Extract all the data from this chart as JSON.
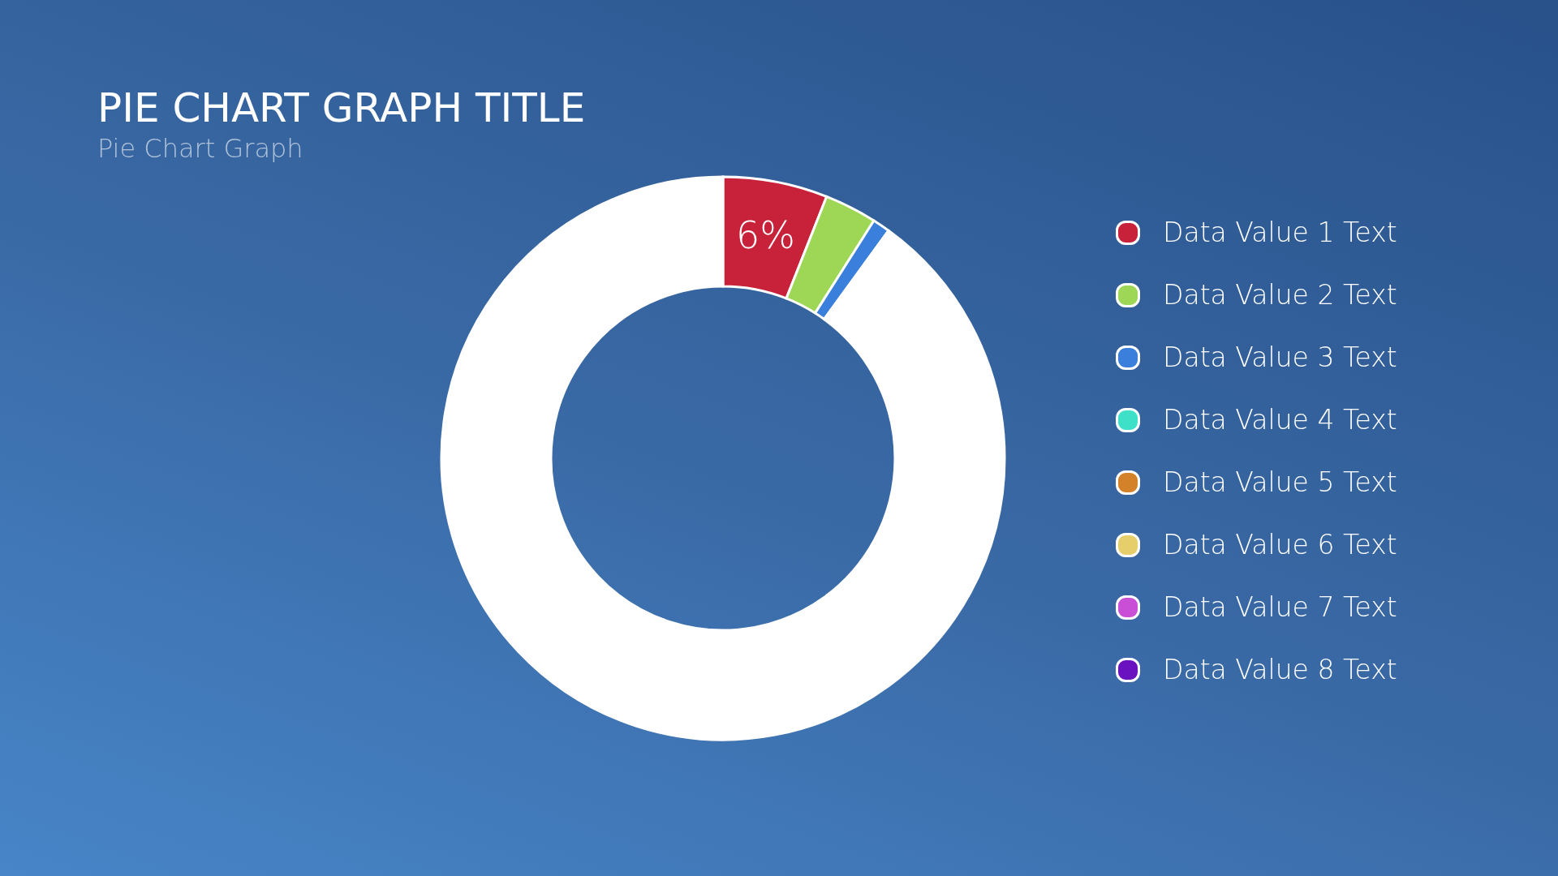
{
  "chart_data": {
    "type": "donut",
    "title": "PIE CHART GRAPH TITLE",
    "subtitle": "Pie Chart Graph",
    "categories": [
      "Data Value 1 Text",
      "Data Value 2 Text",
      "Data Value 3 Text",
      "Data Value 4 Text",
      "Data Value 5 Text",
      "Data Value 6 Text",
      "Data Value 7 Text",
      "Data Value 8 Text",
      null
    ],
    "values": [
      6,
      3,
      1,
      0,
      0,
      0,
      0,
      0,
      90
    ],
    "colors": [
      "#c8223a",
      "#9ed656",
      "#3a7fdc",
      "#3ee0c8",
      "#d4822a",
      "#e6cf6a",
      "#c94fd6",
      "#6a12c0",
      "#ffffff"
    ],
    "value_labels": [
      "6%",
      null,
      null,
      null,
      null,
      null,
      null,
      null,
      null
    ],
    "legend": "right"
  }
}
